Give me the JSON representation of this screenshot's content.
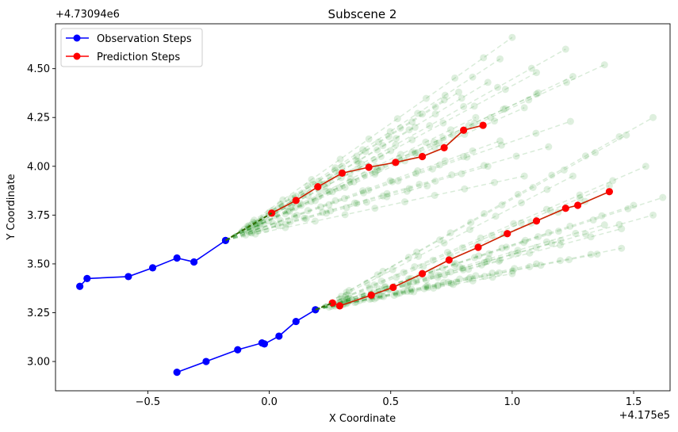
{
  "chart_data": {
    "type": "line",
    "title": "Subscene 2",
    "xlabel": "X Coordinate",
    "ylabel": "Y Coordinate",
    "x_offset_label": "+4.175e5",
    "y_offset_label": "+4.73094e6",
    "xlim": [
      -0.88,
      1.65
    ],
    "ylim": [
      2.85,
      4.73
    ],
    "xticks": [
      -0.5,
      0.0,
      0.5,
      1.0,
      1.5
    ],
    "xtick_labels": [
      "−0.5",
      "0.0",
      "0.5",
      "1.0",
      "1.5"
    ],
    "yticks": [
      3.0,
      3.25,
      3.5,
      3.75,
      4.0,
      4.25,
      4.5
    ],
    "ytick_labels": [
      "3.00",
      "3.25",
      "3.50",
      "3.75",
      "4.00",
      "4.25",
      "4.50"
    ],
    "grid": false,
    "legend_position": "top-left",
    "legend": [
      {
        "label": "Observation Steps",
        "color": "#0000ff"
      },
      {
        "label": "Prediction Steps",
        "color": "#ff0000"
      }
    ],
    "colors": {
      "observation": "#0000ff",
      "prediction": "#ff0000",
      "samples": "#008000",
      "prediction_line": "#cc2200"
    },
    "series": [
      {
        "name": "Observation Steps",
        "color": "#0000ff",
        "points": [
          [
            -0.78,
            3.385
          ],
          [
            -0.75,
            3.425
          ],
          [
            -0.58,
            3.435
          ],
          [
            -0.48,
            3.48
          ],
          [
            -0.38,
            3.53
          ],
          [
            -0.31,
            3.51
          ],
          [
            -0.18,
            3.62
          ]
        ]
      },
      {
        "name": "Observation Steps",
        "color": "#0000ff",
        "points": [
          [
            -0.38,
            2.945
          ],
          [
            -0.26,
            3.0
          ],
          [
            -0.13,
            3.06
          ],
          [
            -0.03,
            3.095
          ],
          [
            -0.02,
            3.09
          ],
          [
            0.04,
            3.13
          ],
          [
            0.11,
            3.205
          ],
          [
            0.19,
            3.265
          ]
        ]
      },
      {
        "name": "Prediction Steps",
        "color": "#ff0000",
        "points": [
          [
            0.01,
            3.76
          ],
          [
            0.11,
            3.825
          ],
          [
            0.2,
            3.895
          ],
          [
            0.3,
            3.965
          ],
          [
            0.41,
            3.995
          ],
          [
            0.52,
            4.02
          ],
          [
            0.63,
            4.05
          ],
          [
            0.72,
            4.095
          ],
          [
            0.8,
            4.185
          ],
          [
            0.88,
            4.21
          ]
        ]
      },
      {
        "name": "Prediction Steps",
        "color": "#ff0000",
        "points": [
          [
            0.26,
            3.3
          ],
          [
            0.29,
            3.285
          ],
          [
            0.42,
            3.34
          ],
          [
            0.51,
            3.38
          ],
          [
            0.63,
            3.45
          ],
          [
            0.74,
            3.52
          ],
          [
            0.86,
            3.585
          ],
          [
            0.98,
            3.655
          ],
          [
            1.1,
            3.72
          ],
          [
            1.22,
            3.785
          ],
          [
            1.27,
            3.8
          ],
          [
            1.4,
            3.87
          ]
        ]
      }
    ],
    "samples": [
      {
        "start": [
          -0.18,
          3.62
        ],
        "ends": [
          [
            1.0,
            4.66
          ],
          [
            1.22,
            4.6
          ],
          [
            1.38,
            4.52
          ],
          [
            1.25,
            4.46
          ],
          [
            0.9,
            4.43
          ],
          [
            1.1,
            4.37
          ],
          [
            1.05,
            4.3
          ],
          [
            0.72,
            4.34
          ],
          [
            0.6,
            4.2
          ],
          [
            1.24,
            4.23
          ],
          [
            0.85,
            4.25
          ],
          [
            0.95,
            4.13
          ],
          [
            1.15,
            4.1
          ],
          [
            0.8,
            4.05
          ],
          [
            1.05,
            3.95
          ],
          [
            0.65,
            3.9
          ],
          [
            0.9,
            4.0
          ],
          [
            0.7,
            4.12
          ],
          [
            0.5,
            4.08
          ],
          [
            1.1,
            4.48
          ],
          [
            0.95,
            4.55
          ],
          [
            0.78,
            4.38
          ]
        ]
      },
      {
        "start": [
          0.19,
          3.265
        ],
        "ends": [
          [
            1.58,
            4.25
          ],
          [
            1.47,
            4.16
          ],
          [
            1.62,
            3.84
          ],
          [
            1.58,
            3.75
          ],
          [
            1.45,
            3.58
          ],
          [
            1.55,
            4.0
          ],
          [
            1.4,
            3.9
          ],
          [
            1.38,
            3.7
          ],
          [
            1.3,
            3.82
          ],
          [
            1.2,
            3.62
          ],
          [
            1.1,
            3.5
          ],
          [
            1.0,
            3.45
          ],
          [
            1.25,
            3.95
          ],
          [
            1.5,
            3.8
          ],
          [
            1.45,
            3.68
          ],
          [
            0.95,
            3.52
          ],
          [
            0.85,
            3.44
          ],
          [
            1.35,
            3.55
          ],
          [
            1.15,
            3.66
          ],
          [
            0.75,
            3.4
          ]
        ]
      }
    ]
  }
}
